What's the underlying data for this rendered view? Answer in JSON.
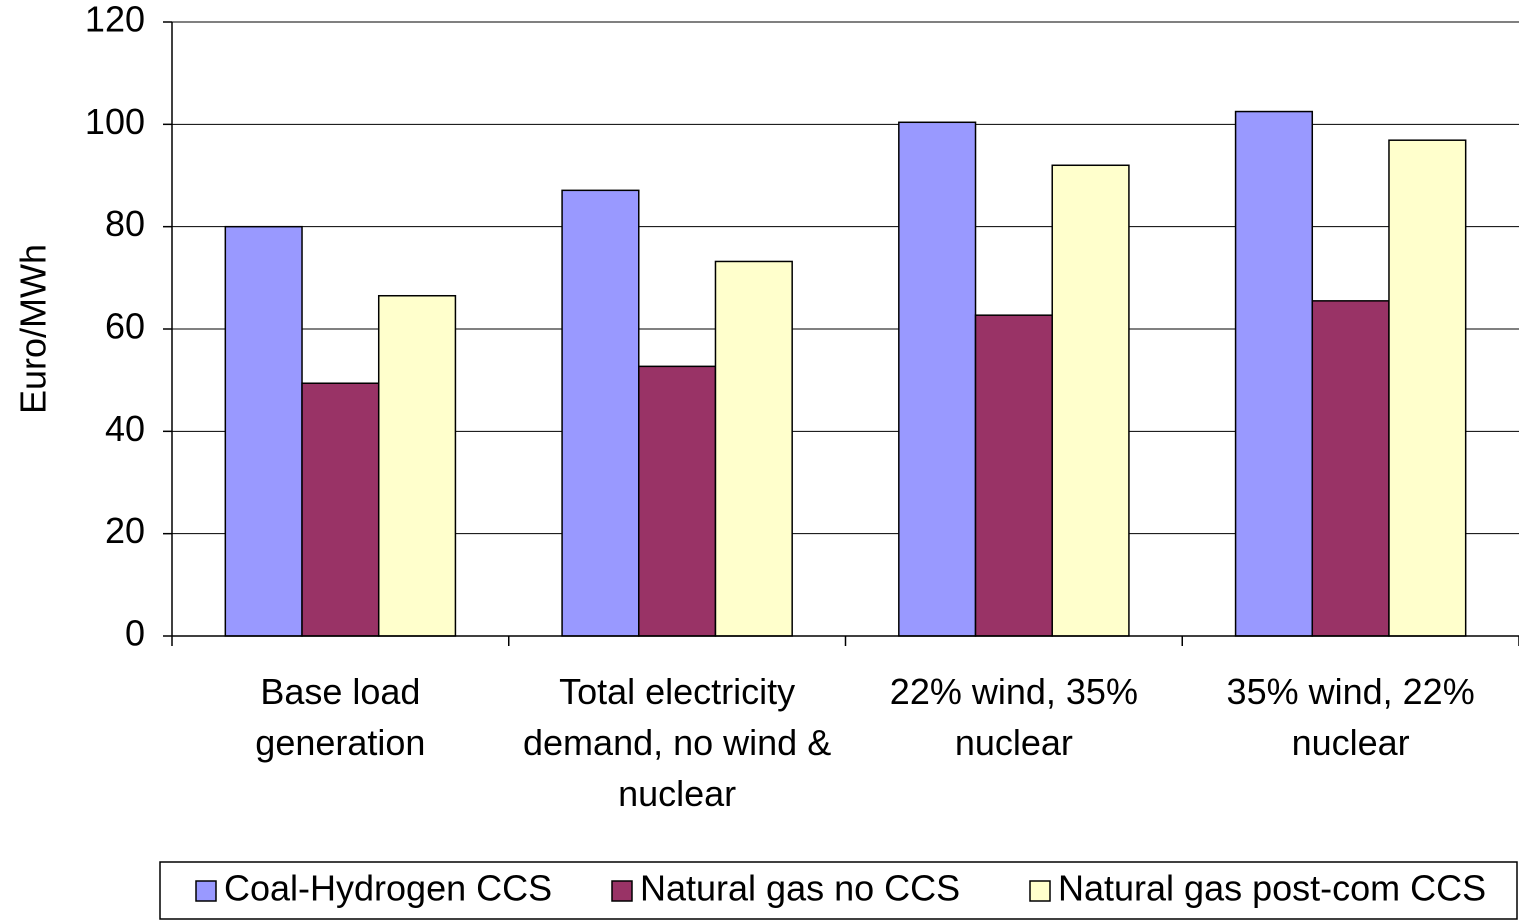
{
  "chart_data": {
    "type": "bar",
    "y_label": "Euro/MWh",
    "categories": [
      "Base load generation",
      "Total electricity demand, no wind & nuclear",
      "22% wind, 35% nuclear",
      "35% wind, 22% nuclear"
    ],
    "series": [
      {
        "name": "Coal-Hydrogen CCS",
        "color": "#9999ff",
        "values": [
          80,
          87.1,
          100.4,
          102.5
        ]
      },
      {
        "name": "Natural gas no CCS",
        "color": "#993366",
        "values": [
          49.4,
          52.7,
          62.7,
          65.5
        ]
      },
      {
        "name": "Natural gas post-com CCS",
        "color": "#ffffcc",
        "values": [
          66.5,
          73.2,
          92.0,
          96.9
        ]
      }
    ],
    "ylim": [
      0,
      120
    ],
    "yticks": [
      0,
      20,
      40,
      60,
      80,
      100,
      120
    ],
    "grid": true
  }
}
